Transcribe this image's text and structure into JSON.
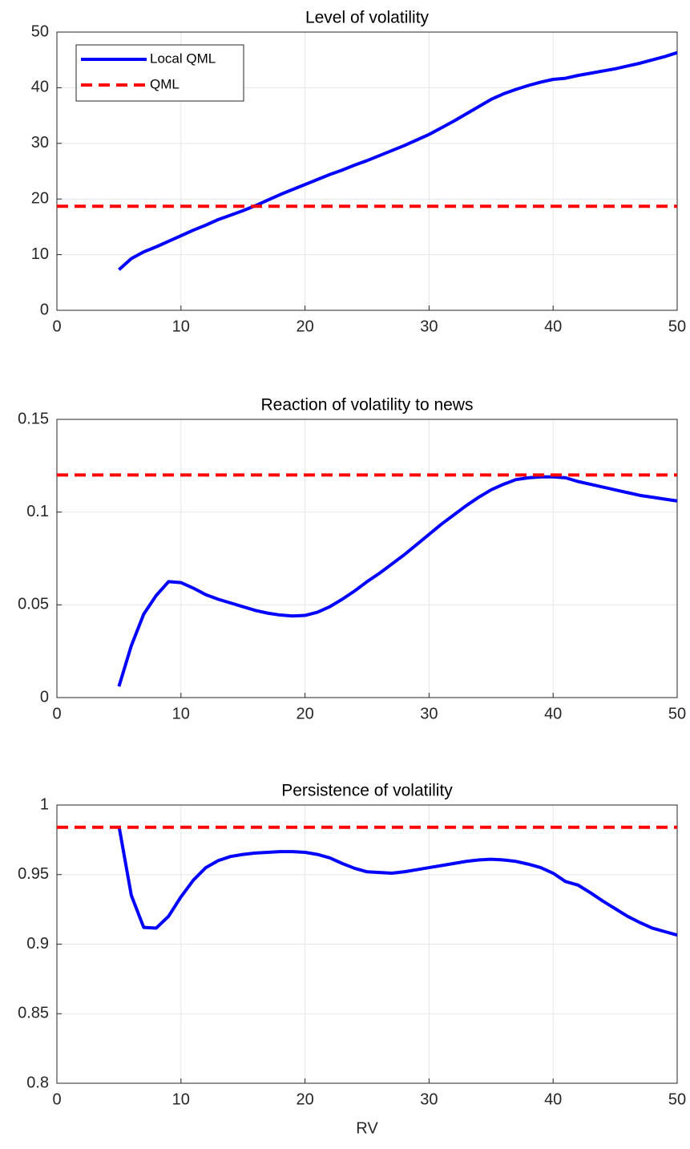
{
  "chart_data": [
    {
      "type": "line",
      "title": "Level of volatility",
      "series": [
        {
          "name": "Local QML",
          "color": "#0000ff",
          "style": "solid",
          "x": [
            5,
            6,
            7,
            8,
            9,
            10,
            11,
            12,
            13,
            14,
            15,
            16,
            17,
            18,
            19,
            20,
            21,
            22,
            23,
            24,
            25,
            26,
            27,
            28,
            29,
            30,
            31,
            32,
            33,
            34,
            35,
            36,
            37,
            38,
            39,
            40,
            41,
            42,
            43,
            44,
            45,
            46,
            47,
            48,
            49,
            50
          ],
          "values": [
            7.3,
            9.3,
            10.5,
            11.4,
            12.4,
            13.4,
            14.4,
            15.3,
            16.3,
            17.1,
            17.9,
            18.8,
            19.8,
            20.8,
            21.7,
            22.6,
            23.5,
            24.4,
            25.2,
            26.1,
            26.9,
            27.8,
            28.7,
            29.6,
            30.6,
            31.6,
            32.8,
            34.0,
            35.3,
            36.6,
            37.9,
            38.9,
            39.7,
            40.4,
            41.0,
            41.5,
            41.7,
            42.2,
            42.6,
            43.0,
            43.4,
            43.9,
            44.4,
            45.0,
            45.6,
            46.3
          ]
        },
        {
          "name": "QML",
          "color": "#ff0000",
          "style": "dashed",
          "x": [
            0,
            50
          ],
          "values": [
            18.7,
            18.7
          ]
        }
      ],
      "xlim": [
        0,
        50
      ],
      "xticks": [
        0,
        10,
        20,
        30,
        40,
        50
      ],
      "ylim": [
        0,
        50
      ],
      "yticks": [
        0,
        10,
        20,
        30,
        40,
        50
      ],
      "grid": true,
      "legend": "upper left"
    },
    {
      "type": "line",
      "title": "Reaction of volatility to news",
      "series": [
        {
          "color": "#0000ff",
          "style": "solid",
          "x": [
            5,
            6,
            7,
            8,
            9,
            10,
            11,
            12,
            13,
            14,
            15,
            16,
            17,
            18,
            19,
            20,
            21,
            22,
            23,
            24,
            25,
            26,
            27,
            28,
            29,
            30,
            31,
            32,
            33,
            34,
            35,
            36,
            37,
            38,
            39,
            40,
            41,
            42,
            43,
            44,
            45,
            46,
            47,
            48,
            49,
            50
          ],
          "values": [
            0.006,
            0.028,
            0.045,
            0.055,
            0.0625,
            0.062,
            0.059,
            0.0555,
            0.053,
            0.051,
            0.049,
            0.047,
            0.0455,
            0.0445,
            0.044,
            0.0443,
            0.046,
            0.049,
            0.053,
            0.0575,
            0.0625,
            0.067,
            0.072,
            0.077,
            0.0825,
            0.088,
            0.0935,
            0.0985,
            0.1035,
            0.108,
            0.112,
            0.115,
            0.1175,
            0.1185,
            0.119,
            0.119,
            0.1185,
            0.1165,
            0.115,
            0.1135,
            0.112,
            0.1105,
            0.109,
            0.108,
            0.107,
            0.106
          ]
        },
        {
          "color": "#ff0000",
          "style": "dashed",
          "x": [
            0,
            50
          ],
          "values": [
            0.12,
            0.12
          ]
        }
      ],
      "xlim": [
        0,
        50
      ],
      "xticks": [
        0,
        10,
        20,
        30,
        40,
        50
      ],
      "ylim": [
        0,
        0.15
      ],
      "yticks": [
        0,
        0.05,
        0.1,
        0.15
      ],
      "grid": true
    },
    {
      "type": "line",
      "title": "Persistence of volatility",
      "xlabel": "RV",
      "series": [
        {
          "color": "#0000ff",
          "style": "solid",
          "x": [
            5,
            6,
            7,
            8,
            9,
            10,
            11,
            12,
            13,
            14,
            15,
            16,
            17,
            18,
            19,
            20,
            21,
            22,
            23,
            24,
            25,
            26,
            27,
            28,
            29,
            30,
            31,
            32,
            33,
            34,
            35,
            36,
            37,
            38,
            39,
            40,
            41,
            42,
            43,
            44,
            45,
            46,
            47,
            48,
            49,
            50
          ],
          "values": [
            0.985,
            0.935,
            0.912,
            0.9115,
            0.92,
            0.934,
            0.946,
            0.955,
            0.96,
            0.963,
            0.9645,
            0.9655,
            0.966,
            0.9665,
            0.9665,
            0.966,
            0.9645,
            0.962,
            0.958,
            0.9545,
            0.952,
            0.9515,
            0.951,
            0.952,
            0.9535,
            0.955,
            0.9565,
            0.958,
            0.9595,
            0.9605,
            0.961,
            0.9605,
            0.9595,
            0.9575,
            0.955,
            0.951,
            0.945,
            0.9425,
            0.937,
            0.931,
            0.9255,
            0.92,
            0.9155,
            0.9115,
            0.909,
            0.9065
          ]
        },
        {
          "color": "#ff0000",
          "style": "dashed",
          "x": [
            0,
            50
          ],
          "values": [
            0.984,
            0.984
          ]
        }
      ],
      "xlim": [
        0,
        50
      ],
      "xticks": [
        0,
        10,
        20,
        30,
        40,
        50
      ],
      "ylim": [
        0.8,
        1
      ],
      "yticks": [
        0.8,
        0.85,
        0.9,
        0.95,
        1
      ],
      "grid": true
    }
  ]
}
